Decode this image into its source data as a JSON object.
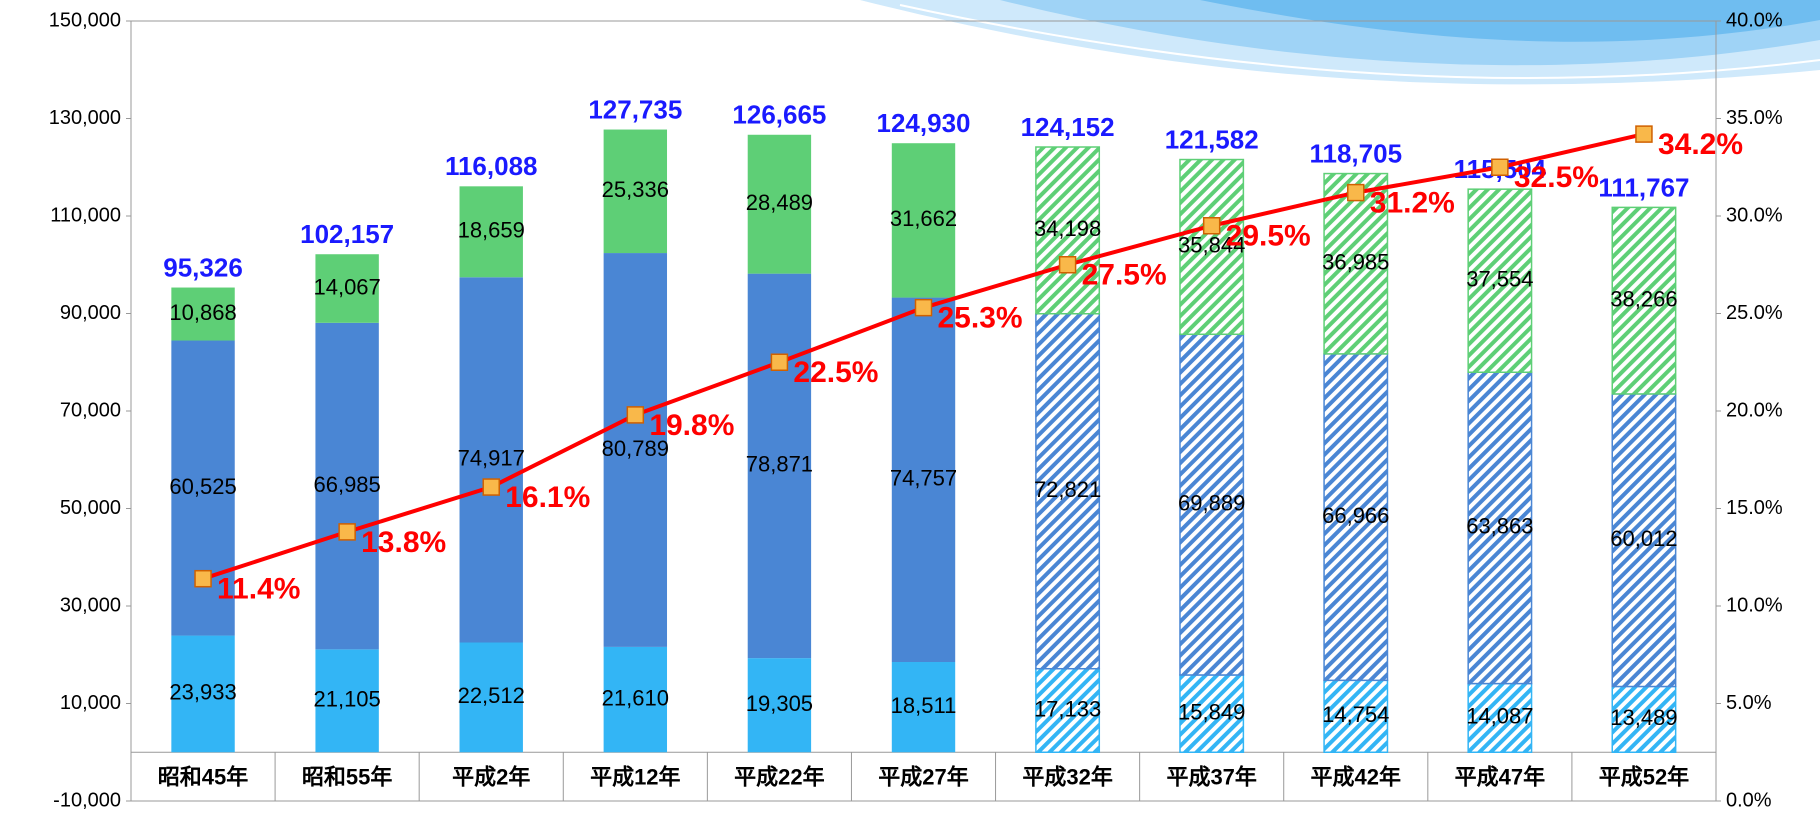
{
  "chart_data": {
    "type": "stacked_bar_line",
    "categories": [
      "昭和45年",
      "昭和55年",
      "平成2年",
      "平成12年",
      "平成22年",
      "平成27年",
      "平成32年",
      "平成37年",
      "平成42年",
      "平成47年",
      "平成52年"
    ],
    "forecast": [
      false,
      false,
      false,
      false,
      false,
      false,
      true,
      true,
      true,
      true,
      true
    ],
    "series": [
      {
        "color": "#33b5f5",
        "values": [
          23933,
          21105,
          22512,
          21610,
          19305,
          18511,
          17133,
          15849,
          14754,
          14087,
          13489
        ],
        "value_labels": [
          "23,933",
          "21,105",
          "22,512",
          "21,610",
          "19,305",
          "18,511",
          "17,133",
          "15,849",
          "14,754",
          "14,087",
          "13,489"
        ]
      },
      {
        "color": "#4a86d4",
        "values": [
          60525,
          66985,
          74917,
          80789,
          78871,
          74757,
          72821,
          69889,
          66966,
          63863,
          60012
        ],
        "value_labels": [
          "60,525",
          "66,985",
          "74,917",
          "80,789",
          "78,871",
          "74,757",
          "72,821",
          "69,889",
          "66,966",
          "63,863",
          "60,012"
        ]
      },
      {
        "color": "#5ecf76",
        "values": [
          10868,
          14067,
          18659,
          25336,
          28489,
          31662,
          34198,
          35844,
          36985,
          37554,
          38266
        ],
        "value_labels": [
          "10,868",
          "14,067",
          "18,659",
          "25,336",
          "28,489",
          "31,662",
          "34,198",
          "35,844",
          "36,985",
          "37,554",
          "38,266"
        ]
      },
      {
        "type": "line",
        "axis": "y2",
        "color": "#ff0000",
        "marker_color": "#f9b84a",
        "values": [
          11.4,
          13.8,
          16.1,
          19.8,
          22.5,
          25.3,
          27.5,
          29.5,
          31.2,
          32.5,
          34.2
        ],
        "value_labels": [
          "11.4%",
          "13.8%",
          "16.1%",
          "19.8%",
          "22.5%",
          "25.3%",
          "27.5%",
          "29.5%",
          "31.2%",
          "32.5%",
          "34.2%"
        ]
      }
    ],
    "totals": {
      "color": "#1a1aff",
      "values": [
        95326,
        102157,
        116088,
        127735,
        126665,
        124930,
        124152,
        121582,
        118705,
        115504,
        111767
      ],
      "value_labels": [
        "95,326",
        "102,157",
        "116,088",
        "127,735",
        "126,665",
        "124,930",
        "124,152",
        "121,582",
        "118,705",
        "115,504",
        "111,767"
      ]
    },
    "ylim": [
      -10000,
      150000
    ],
    "yticks": [
      {
        "value": -10000,
        "label": "-10,000"
      },
      {
        "value": 10000,
        "label": "10,000"
      },
      {
        "value": 30000,
        "label": "30,000"
      },
      {
        "value": 50000,
        "label": "50,000"
      },
      {
        "value": 70000,
        "label": "70,000"
      },
      {
        "value": 90000,
        "label": "90,000"
      },
      {
        "value": 110000,
        "label": "110,000"
      },
      {
        "value": 130000,
        "label": "130,000"
      },
      {
        "value": 150000,
        "label": "150,000"
      }
    ],
    "y2lim": [
      0,
      40
    ],
    "y2ticks": [
      {
        "value": 0,
        "label": "0.0%"
      },
      {
        "value": 5,
        "label": "5.0%"
      },
      {
        "value": 10,
        "label": "10.0%"
      },
      {
        "value": 15,
        "label": "15.0%"
      },
      {
        "value": 20,
        "label": "20.0%"
      },
      {
        "value": 25,
        "label": "25.0%"
      },
      {
        "value": 30,
        "label": "30.0%"
      },
      {
        "value": 35,
        "label": "35.0%"
      },
      {
        "value": 40,
        "label": "40.0%"
      }
    ],
    "grid": false
  }
}
